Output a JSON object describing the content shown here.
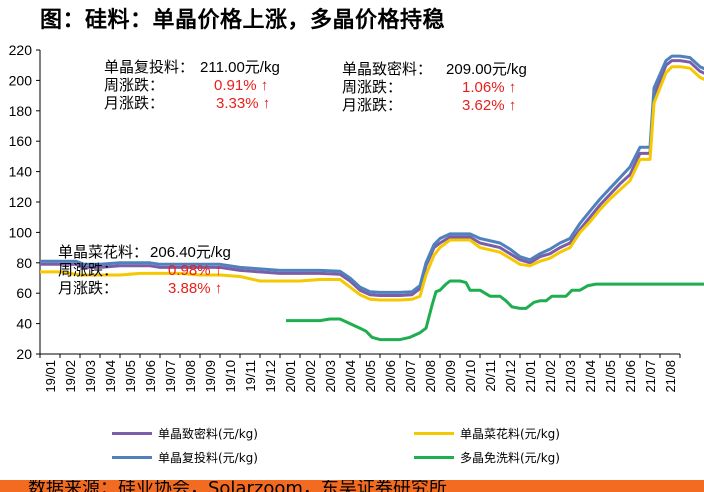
{
  "title": "图：硅料：单晶价格上涨，多晶价格持稳",
  "annotations": {
    "fu_tou": {
      "label": "单晶复投料：",
      "price": "211.00元/kg",
      "week_label": "周涨跌：",
      "week_value": "0.91% ↑",
      "month_label": "月涨跌：",
      "month_value": "3.33% ↑"
    },
    "zhi_mi": {
      "label": "单晶致密料：",
      "price": "209.00元/kg",
      "week_label": "周涨跌：",
      "week_value": "1.06% ↑",
      "month_label": "月涨跌：",
      "month_value": "3.62% ↑"
    },
    "cai_hua": {
      "label": "单晶菜花料：",
      "price": "206.40元/kg",
      "week_label": "周涨跌：",
      "week_value": "0.98% ↑",
      "month_label": "月涨跌：",
      "month_value": "3.88% ↑"
    }
  },
  "footer": {
    "source": "数据来源：硅业协会，Solarzoom，东吴证券研究所"
  },
  "chart_data": {
    "type": "line",
    "ylim": [
      20,
      220
    ],
    "yticks": [
      20,
      40,
      60,
      80,
      100,
      120,
      140,
      160,
      180,
      200,
      220
    ],
    "x_ticks": [
      "19/01",
      "19/02",
      "19/03",
      "19/04",
      "19/05",
      "19/06",
      "19/07",
      "19/08",
      "19/09",
      "19/10",
      "19/11",
      "19/12",
      "20/01",
      "20/02",
      "20/03",
      "20/04",
      "20/05",
      "20/06",
      "20/07",
      "20/08",
      "20/09",
      "20/10",
      "20/11",
      "20/12",
      "21/01",
      "21/02",
      "21/03",
      "21/04",
      "21/05",
      "21/06",
      "21/07",
      "21/08"
    ],
    "x_max": 32,
    "grid": false,
    "legend_position": "bottom",
    "series": [
      {
        "name": "单晶致密料(元/kg)",
        "color": "#7b5ea7",
        "points": [
          [
            0,
            79
          ],
          [
            1,
            79
          ],
          [
            1.8,
            79
          ],
          [
            2.2,
            77
          ],
          [
            3,
            77
          ],
          [
            4,
            78
          ],
          [
            5,
            78
          ],
          [
            5.5,
            78
          ],
          [
            6,
            77
          ],
          [
            7,
            77
          ],
          [
            8,
            77
          ],
          [
            9,
            77
          ],
          [
            10,
            75
          ],
          [
            11,
            74
          ],
          [
            12,
            73
          ],
          [
            13,
            73
          ],
          [
            14,
            73
          ],
          [
            15,
            72.5
          ],
          [
            15.5,
            68
          ],
          [
            16,
            62
          ],
          [
            16.5,
            59
          ],
          [
            17,
            58.5
          ],
          [
            18,
            58.5
          ],
          [
            18.6,
            59
          ],
          [
            19,
            63
          ],
          [
            19.3,
            78
          ],
          [
            19.7,
            90
          ],
          [
            20,
            93
          ],
          [
            20.5,
            97
          ],
          [
            21,
            97
          ],
          [
            21.5,
            97
          ],
          [
            22,
            93
          ],
          [
            23,
            90
          ],
          [
            23.5,
            86
          ],
          [
            24,
            82
          ],
          [
            24.5,
            80
          ],
          [
            25,
            84
          ],
          [
            25.5,
            86
          ],
          [
            26,
            90
          ],
          [
            26.5,
            93
          ],
          [
            27,
            102
          ],
          [
            27.5,
            110
          ],
          [
            28,
            118
          ],
          [
            28.5,
            125
          ],
          [
            29,
            132
          ],
          [
            29.5,
            138
          ],
          [
            30,
            152
          ],
          [
            30.5,
            152
          ],
          [
            30.7,
            190
          ],
          [
            31,
            200
          ],
          [
            31.3,
            210
          ],
          [
            31.6,
            213
          ],
          [
            32,
            213
          ],
          [
            32.5,
            212
          ],
          [
            33,
            206
          ],
          [
            33.5,
            203
          ],
          [
            34,
            203
          ],
          [
            34.3,
            205
          ],
          [
            34.8,
            209
          ]
        ]
      },
      {
        "name": "单晶复投料(元/kg)",
        "color": "#4f81bd",
        "points": [
          [
            0,
            81
          ],
          [
            1,
            81
          ],
          [
            1.8,
            81
          ],
          [
            2.2,
            79
          ],
          [
            3,
            79
          ],
          [
            4,
            80
          ],
          [
            5,
            80
          ],
          [
            5.5,
            80
          ],
          [
            6,
            79
          ],
          [
            7,
            79
          ],
          [
            8,
            79
          ],
          [
            9,
            79
          ],
          [
            10,
            77
          ],
          [
            11,
            76
          ],
          [
            12,
            75
          ],
          [
            13,
            75
          ],
          [
            14,
            75
          ],
          [
            15,
            74.5
          ],
          [
            15.5,
            70
          ],
          [
            16,
            64
          ],
          [
            16.5,
            61
          ],
          [
            17,
            60.5
          ],
          [
            18,
            60.5
          ],
          [
            18.6,
            61
          ],
          [
            19,
            65
          ],
          [
            19.3,
            80
          ],
          [
            19.7,
            92
          ],
          [
            20,
            96
          ],
          [
            20.5,
            99
          ],
          [
            21,
            99
          ],
          [
            21.5,
            99
          ],
          [
            22,
            96
          ],
          [
            23,
            93
          ],
          [
            23.5,
            89
          ],
          [
            24,
            84
          ],
          [
            24.5,
            82
          ],
          [
            25,
            86
          ],
          [
            25.5,
            89
          ],
          [
            26,
            93
          ],
          [
            26.5,
            96
          ],
          [
            27,
            106
          ],
          [
            27.5,
            114
          ],
          [
            28,
            122
          ],
          [
            28.5,
            129
          ],
          [
            29,
            136
          ],
          [
            29.5,
            143
          ],
          [
            30,
            156
          ],
          [
            30.5,
            156
          ],
          [
            30.7,
            195
          ],
          [
            31,
            204
          ],
          [
            31.3,
            213
          ],
          [
            31.6,
            216
          ],
          [
            32,
            216
          ],
          [
            32.5,
            215
          ],
          [
            33,
            209
          ],
          [
            33.5,
            206
          ],
          [
            34,
            206
          ],
          [
            34.3,
            208
          ],
          [
            34.8,
            211
          ]
        ]
      },
      {
        "name": "单晶菜花料(元/kg)",
        "color": "#f5c800",
        "points": [
          [
            0,
            74
          ],
          [
            1,
            74
          ],
          [
            2,
            72
          ],
          [
            3,
            72
          ],
          [
            4,
            72
          ],
          [
            5,
            73
          ],
          [
            5.5,
            73
          ],
          [
            6,
            73
          ],
          [
            7,
            73
          ],
          [
            8,
            72
          ],
          [
            9,
            72
          ],
          [
            10,
            71
          ],
          [
            11,
            68
          ],
          [
            12,
            68
          ],
          [
            13,
            68
          ],
          [
            14,
            69
          ],
          [
            15,
            69
          ],
          [
            15.5,
            64
          ],
          [
            16,
            59
          ],
          [
            16.5,
            56
          ],
          [
            17,
            55.5
          ],
          [
            18,
            55.5
          ],
          [
            18.6,
            56
          ],
          [
            19,
            58
          ],
          [
            19.3,
            72
          ],
          [
            19.7,
            85
          ],
          [
            20,
            90
          ],
          [
            20.5,
            95
          ],
          [
            21,
            95
          ],
          [
            21.5,
            95
          ],
          [
            22,
            90
          ],
          [
            23,
            87
          ],
          [
            23.5,
            83
          ],
          [
            24,
            79
          ],
          [
            24.5,
            78
          ],
          [
            25,
            81
          ],
          [
            25.5,
            83
          ],
          [
            26,
            87
          ],
          [
            26.5,
            90
          ],
          [
            27,
            100
          ],
          [
            27.5,
            107
          ],
          [
            28,
            115
          ],
          [
            28.5,
            122
          ],
          [
            29,
            128
          ],
          [
            29.5,
            134
          ],
          [
            30,
            148
          ],
          [
            30.5,
            148
          ],
          [
            30.7,
            185
          ],
          [
            31,
            195
          ],
          [
            31.3,
            205
          ],
          [
            31.6,
            209
          ],
          [
            32,
            209
          ],
          [
            32.5,
            208
          ],
          [
            33,
            202
          ],
          [
            33.5,
            199
          ],
          [
            34,
            199
          ],
          [
            34.3,
            202
          ],
          [
            34.8,
            206.4
          ]
        ]
      },
      {
        "name": "多晶免洗料(元/kg)",
        "color": "#1fae4f",
        "points": [
          [
            12.3,
            42
          ],
          [
            14,
            42
          ],
          [
            14.5,
            43
          ],
          [
            15,
            43
          ],
          [
            15.5,
            40
          ],
          [
            16,
            37
          ],
          [
            16.3,
            35
          ],
          [
            16.6,
            31
          ],
          [
            17,
            29.5
          ],
          [
            17.5,
            29.5
          ],
          [
            18,
            29.5
          ],
          [
            18.5,
            31
          ],
          [
            19,
            34
          ],
          [
            19.3,
            37
          ],
          [
            19.6,
            52
          ],
          [
            19.8,
            61
          ],
          [
            20,
            62
          ],
          [
            20.3,
            66
          ],
          [
            20.5,
            68
          ],
          [
            21,
            68
          ],
          [
            21.3,
            67
          ],
          [
            21.5,
            62
          ],
          [
            22,
            62
          ],
          [
            22.5,
            58
          ],
          [
            23,
            58
          ],
          [
            23.3,
            55
          ],
          [
            23.6,
            51
          ],
          [
            24,
            50
          ],
          [
            24.3,
            50
          ],
          [
            24.7,
            54
          ],
          [
            25,
            55
          ],
          [
            25.3,
            55
          ],
          [
            25.6,
            58
          ],
          [
            26,
            58
          ],
          [
            26.3,
            58
          ],
          [
            26.6,
            62
          ],
          [
            27,
            62
          ],
          [
            27.4,
            65
          ],
          [
            27.8,
            66
          ],
          [
            28,
            66
          ],
          [
            29,
            66
          ],
          [
            30,
            66
          ],
          [
            31,
            66
          ],
          [
            32,
            66
          ],
          [
            33,
            66
          ],
          [
            34,
            66
          ],
          [
            34.8,
            66
          ]
        ]
      }
    ]
  }
}
